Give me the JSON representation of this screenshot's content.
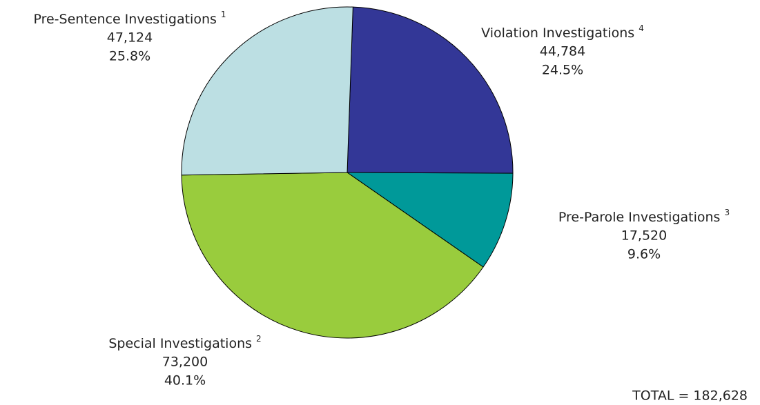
{
  "chart_data": {
    "type": "pie",
    "categories": [
      "Violation Investigations",
      "Pre-Parole Investigations",
      "Special Investigations",
      "Pre-Sentence Investigations"
    ],
    "footnotes": [
      "4",
      "3",
      "2",
      "1"
    ],
    "values": [
      44784,
      17520,
      73200,
      47124
    ],
    "value_labels": [
      "44,784",
      "17,520",
      "73,200",
      "47,124"
    ],
    "percent_labels": [
      "24.5%",
      "9.6%",
      "40.1%",
      "25.8%"
    ],
    "colors": [
      "#333797",
      "#009999",
      "#99cc3d",
      "#bcdfe3"
    ],
    "annotation": "TOTAL = 182,628"
  }
}
